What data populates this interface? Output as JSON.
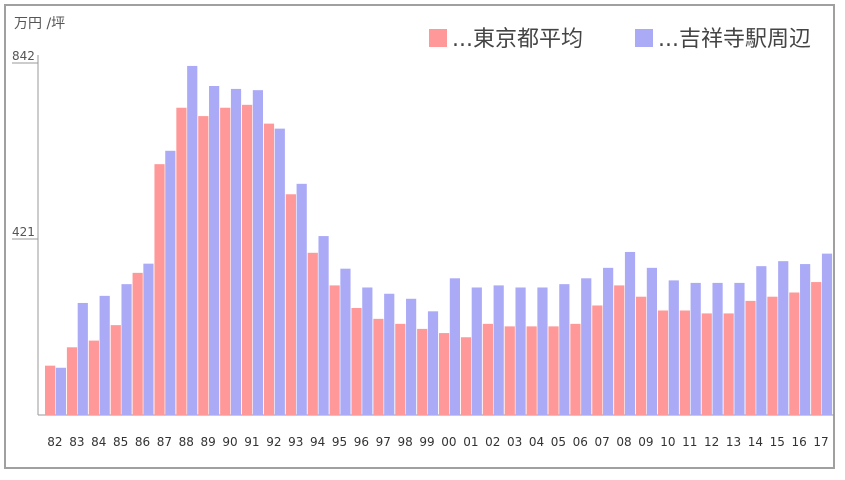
{
  "chart_data": {
    "type": "bar",
    "unit_label": "万円 /坪",
    "y_ticks": [
      421,
      842
    ],
    "ylim": [
      0,
      842
    ],
    "categories": [
      "82",
      "83",
      "84",
      "85",
      "86",
      "87",
      "88",
      "89",
      "90",
      "91",
      "92",
      "93",
      "94",
      "95",
      "96",
      "97",
      "98",
      "99",
      "00",
      "01",
      "02",
      "03",
      "04",
      "05",
      "06",
      "07",
      "08",
      "09",
      "10",
      "11",
      "12",
      "13",
      "14",
      "15",
      "16",
      "17"
    ],
    "series": [
      {
        "name": "...東京都平均",
        "color": "#ff9999",
        "values": [
          118,
          162,
          178,
          215,
          340,
          600,
          735,
          715,
          735,
          742,
          697,
          528,
          388,
          310,
          256,
          230,
          218,
          206,
          196,
          186,
          218,
          212,
          212,
          212,
          218,
          262,
          310,
          283,
          250,
          250,
          243,
          243,
          273,
          283,
          293,
          318
        ]
      },
      {
        "name": "...吉祥寺駅周辺",
        "color": "#aaaaf7",
        "values": [
          113,
          268,
          285,
          313,
          362,
          632,
          835,
          787,
          780,
          777,
          685,
          553,
          428,
          350,
          305,
          290,
          278,
          248,
          327,
          305,
          310,
          305,
          305,
          313,
          327,
          352,
          390,
          352,
          322,
          316,
          316,
          316,
          356,
          368,
          361,
          386
        ]
      }
    ],
    "grid": false,
    "legend_position": "top-right"
  }
}
